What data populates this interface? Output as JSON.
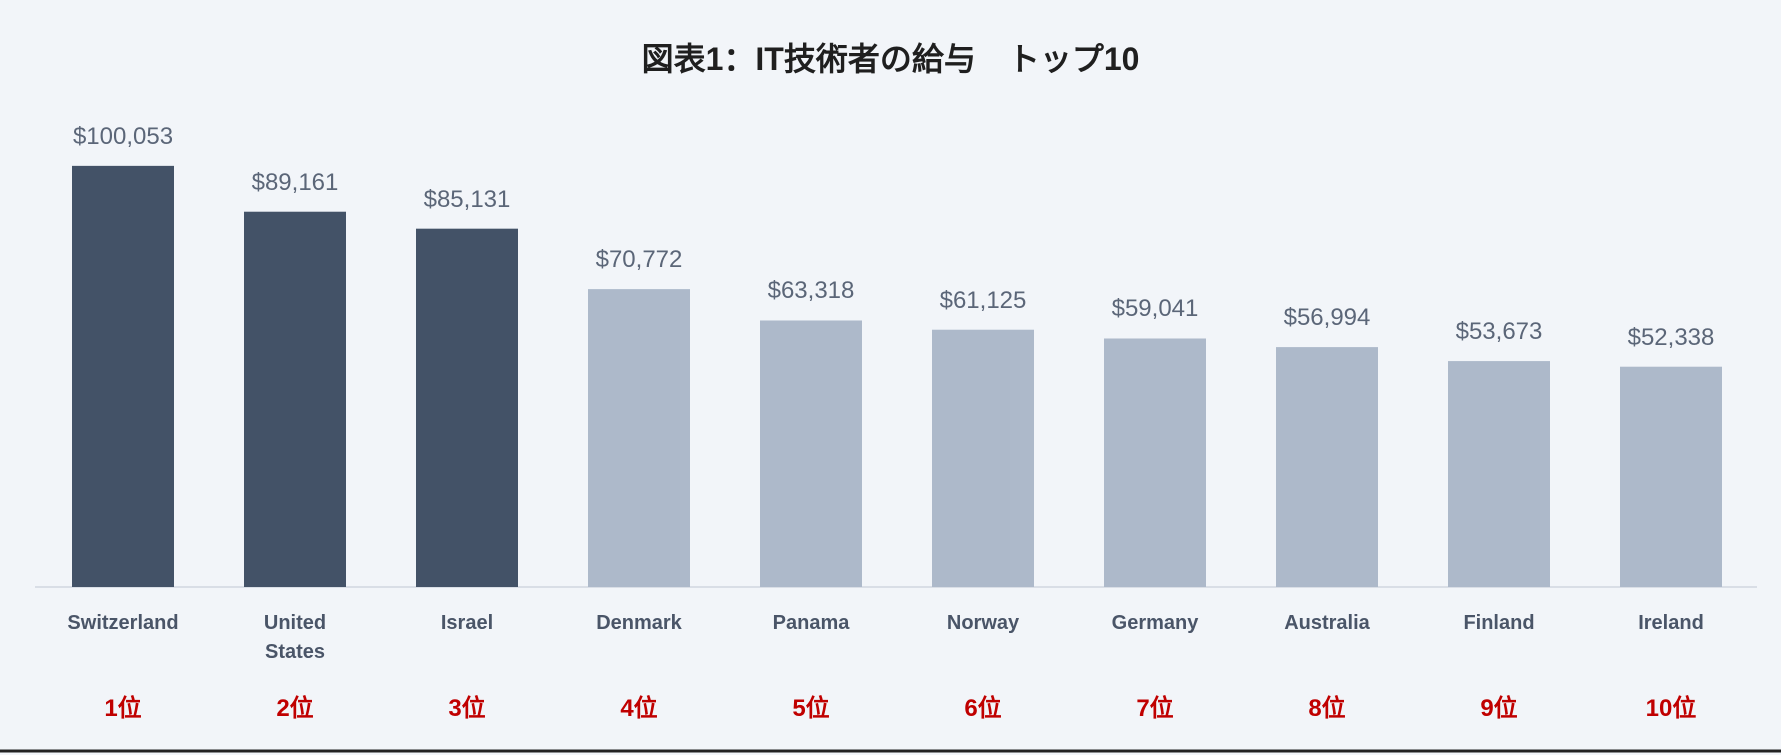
{
  "chart_data": {
    "type": "bar",
    "title": "図表1：IT技術者の給与　トップ10",
    "categories": [
      "Switzerland",
      "United States",
      "Israel",
      "Denmark",
      "Panama",
      "Norway",
      "Germany",
      "Australia",
      "Finland",
      "Ireland"
    ],
    "values": [
      100053,
      89161,
      85131,
      70772,
      63318,
      61125,
      59041,
      56994,
      53673,
      52338
    ],
    "value_labels": [
      "$100,053",
      "$89,161",
      "$85,131",
      "$70,772",
      "$63,318",
      "$61,125",
      "$59,041",
      "$56,994",
      "$53,673",
      "$52,338"
    ],
    "ranks": [
      "1位",
      "2位",
      "3位",
      "4位",
      "5位",
      "6位",
      "7位",
      "8位",
      "9位",
      "10位"
    ],
    "colors": [
      "#435267",
      "#435267",
      "#435267",
      "#adb9ca",
      "#adb9ca",
      "#adb9ca",
      "#adb9ca",
      "#adb9ca",
      "#adb9ca",
      "#adb9ca"
    ],
    "ylim": [
      0,
      110000
    ]
  }
}
